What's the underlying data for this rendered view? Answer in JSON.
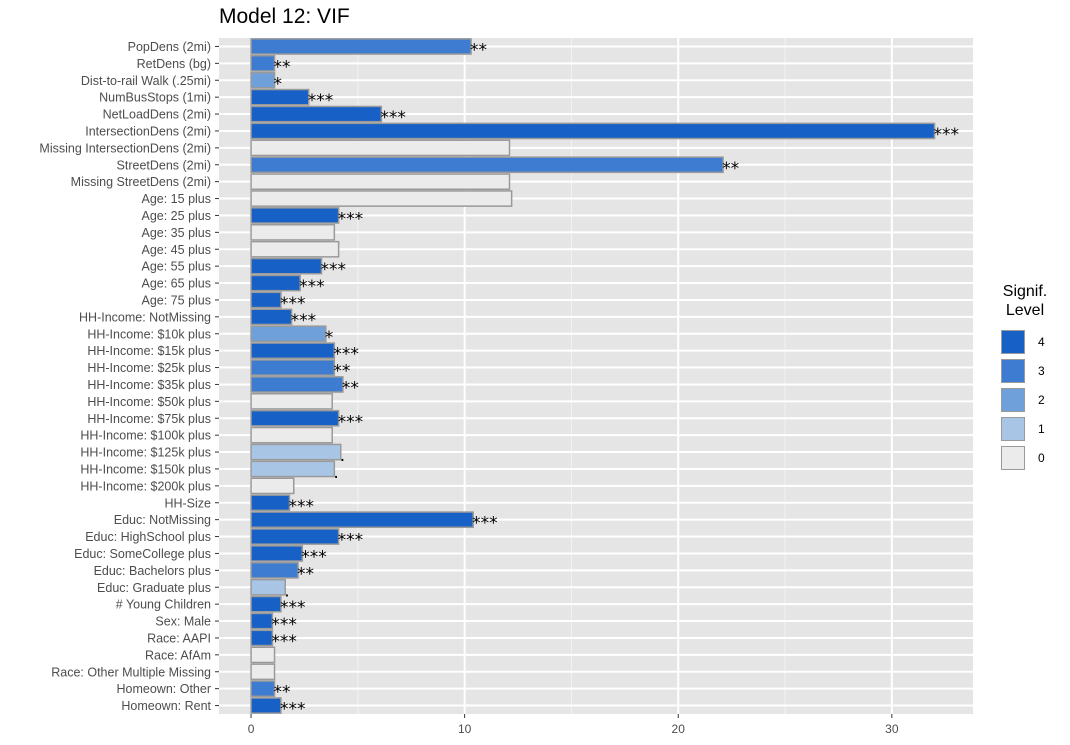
{
  "chart_data": {
    "type": "bar",
    "orientation": "horizontal",
    "title": "Model 12: VIF",
    "xlabel": "",
    "ylabel": "",
    "xlim": [
      -1.5,
      33.8
    ],
    "xticks": [
      0,
      10,
      20,
      30
    ],
    "grid": true,
    "legend": {
      "title": "Signif.\nLevel",
      "placement": "right",
      "levels": [
        "4",
        "3",
        "2",
        "1",
        "0"
      ],
      "colors": [
        "#1660C6",
        "#3D7CD0",
        "#6FA0DA",
        "#A9C5E6",
        "#EBEBEB"
      ]
    },
    "categories": [
      "PopDens (2mi)",
      "RetDens (bg)",
      "Dist-to-rail Walk (.25mi)",
      "NumBusStops (1mi)",
      "NetLoadDens (2mi)",
      "IntersectionDens (2mi)",
      "Missing IntersectionDens (2mi)",
      "StreetDens (2mi)",
      "Missing StreetDens (2mi)",
      "Age: 15 plus",
      "Age: 25 plus",
      "Age: 35 plus",
      "Age: 45 plus",
      "Age: 55 plus",
      "Age: 65 plus",
      "Age: 75 plus",
      "HH-Income: NotMissing",
      "HH-Income:  $10k plus",
      "HH-Income:  $15k plus",
      "HH-Income:  $25k plus",
      "HH-Income:  $35k plus",
      "HH-Income:  $50k plus",
      "HH-Income:  $75k plus",
      "HH-Income: $100k plus",
      "HH-Income: $125k plus",
      "HH-Income: $150k plus",
      "HH-Income: $200k plus",
      "HH-Size",
      "Educ: NotMissing",
      "Educ: HighSchool plus",
      "Educ: SomeCollege plus",
      "Educ: Bachelors plus",
      "Educ: Graduate plus",
      "# Young Children",
      "Sex: Male",
      "Race: AAPI",
      "Race: AfAm",
      "Race: Other Multiple Missing",
      "Homeown: Other",
      "Homeown: Rent"
    ],
    "values": [
      10.3,
      1.1,
      1.1,
      2.7,
      6.1,
      32.0,
      12.1,
      22.1,
      12.1,
      12.2,
      4.1,
      3.9,
      4.1,
      3.3,
      2.3,
      1.4,
      1.9,
      3.5,
      3.9,
      3.9,
      4.3,
      3.8,
      4.1,
      3.8,
      4.2,
      3.9,
      2.0,
      1.8,
      10.4,
      4.1,
      2.4,
      2.2,
      1.6,
      1.4,
      1.0,
      1.0,
      1.1,
      1.1,
      1.1,
      1.4
    ],
    "signif_level": [
      3,
      3,
      2,
      4,
      4,
      4,
      0,
      3,
      0,
      0,
      4,
      0,
      0,
      4,
      4,
      4,
      4,
      2,
      4,
      3,
      3,
      0,
      4,
      0,
      1,
      1,
      0,
      4,
      4,
      4,
      4,
      3,
      1,
      4,
      4,
      4,
      0,
      0,
      3,
      4
    ],
    "signif_label": [
      "**",
      "**",
      "*",
      "***",
      "***",
      "***",
      "",
      "**",
      "",
      "",
      "***",
      "",
      "",
      "***",
      "***",
      "***",
      "***",
      "*",
      "***",
      "**",
      "**",
      "",
      "***",
      "",
      ".",
      ".",
      "",
      "***",
      "***",
      "***",
      "***",
      "**",
      ".",
      "***",
      "***",
      "***",
      "",
      "",
      "**",
      "***"
    ]
  }
}
